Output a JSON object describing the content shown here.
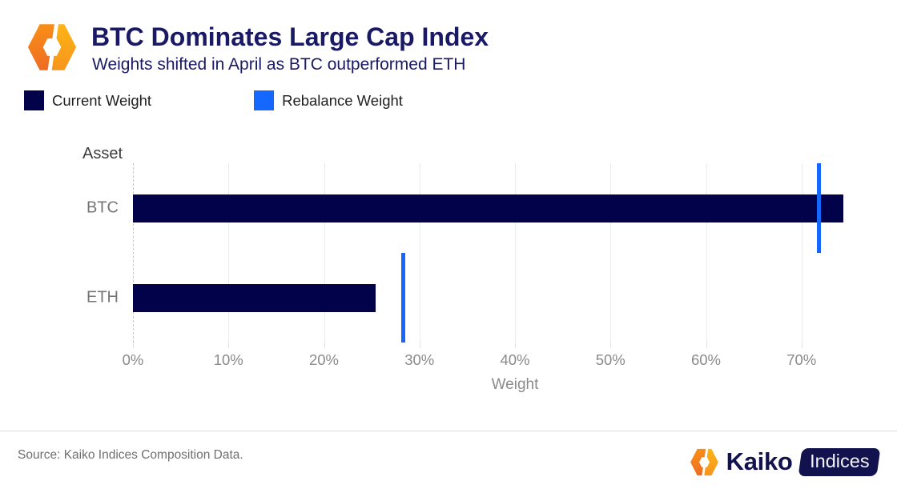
{
  "header": {
    "title": "BTC Dominates Large Cap Index",
    "subtitle": "Weights shifted in April as BTC outperformed ETH"
  },
  "chart_data": {
    "type": "bar",
    "orientation": "horizontal",
    "title": "BTC Dominates Large Cap Index",
    "subtitle": "Weights shifted in April as BTC outperformed ETH",
    "categories": [
      "BTC",
      "ETH"
    ],
    "series": [
      {
        "name": "Current Weight",
        "style": "bar",
        "color": "#02024B",
        "values": [
          74.4,
          25.4
        ]
      },
      {
        "name": "Rebalance Weight",
        "style": "tick-marker",
        "color": "#1667FD",
        "values": [
          71.8,
          28.3
        ]
      }
    ],
    "value_unit": "%",
    "xlabel": "Weight",
    "ylabel": "Asset",
    "xlim": [
      0,
      80
    ],
    "xticks": [
      0,
      10,
      20,
      30,
      40,
      50,
      60,
      70
    ],
    "xtick_suffix": "%",
    "grid": true,
    "legend_position": "top-left"
  },
  "footer": {
    "source": "Source: Kaiko Indices Composition Data.",
    "brand": {
      "name": "Kaiko",
      "badge": "Indices"
    }
  },
  "colors": {
    "title_navy": "#191965",
    "bar_navy": "#02024B",
    "rebalance_blue": "#1667FD",
    "axis_text": "#8a8a8a",
    "category_text": "#757575",
    "gridline": "#ececec",
    "zero_line": "#c9c9c9",
    "brand_navy": "#12124E",
    "logo_amber": "#FDB515",
    "logo_orange": "#F7941D",
    "logo_orange_light": "#FA9116",
    "logo_orange_deep": "#EE6C23"
  }
}
